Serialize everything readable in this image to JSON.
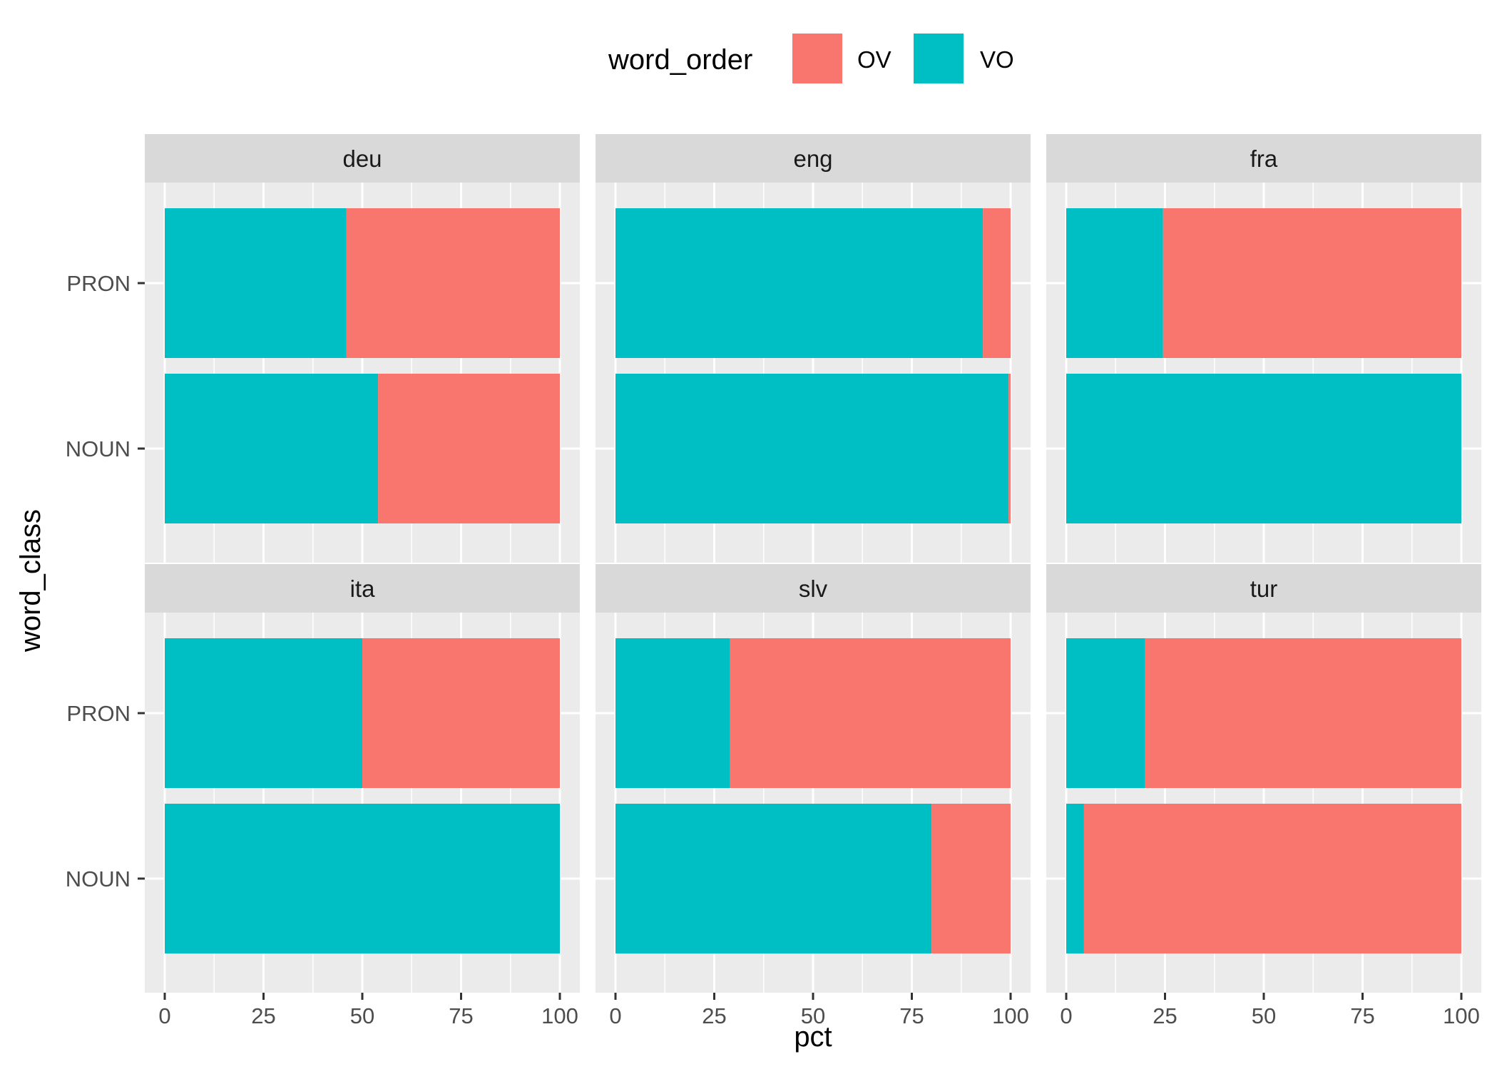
{
  "chart_data": {
    "type": "bar",
    "orientation": "horizontal",
    "stacked": true,
    "facet_by": "language",
    "xlabel": "pct",
    "ylabel": "word_class",
    "xlim": [
      0,
      100
    ],
    "xticks": [
      0,
      25,
      50,
      75,
      100
    ],
    "categories": [
      "PRON",
      "NOUN"
    ],
    "legend": {
      "title": "word_order",
      "position": "top",
      "items": [
        {
          "name": "OV",
          "color": "#F8766D"
        },
        {
          "name": "VO",
          "color": "#00BFC4"
        }
      ]
    },
    "grid": true,
    "panel_background": "#EBEBEB",
    "strip_background": "#D9D9D9",
    "panels": [
      {
        "label": "deu",
        "VO": {
          "PRON": 46,
          "NOUN": 54
        }
      },
      {
        "label": "eng",
        "VO": {
          "PRON": 93,
          "NOUN": 99.5
        }
      },
      {
        "label": "fra",
        "VO": {
          "PRON": 24.5,
          "NOUN": 100
        }
      },
      {
        "label": "ita",
        "VO": {
          "PRON": 50,
          "NOUN": 100
        }
      },
      {
        "label": "slv",
        "VO": {
          "PRON": 29,
          "NOUN": 80
        }
      },
      {
        "label": "tur",
        "VO": {
          "PRON": 20,
          "NOUN": 4.5
        }
      }
    ]
  }
}
